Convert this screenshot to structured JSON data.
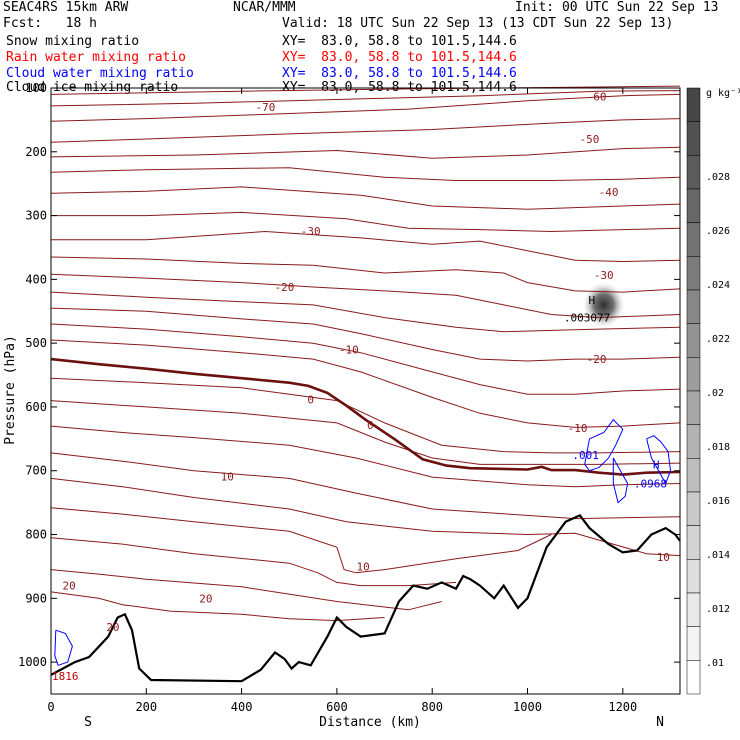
{
  "header": {
    "model": "SEAC4RS 15km ARW",
    "org": "NCAR/MMM",
    "init": "Init: 00 UTC Sun 22 Sep 13",
    "fcst": "Fcst:   18 h",
    "valid": "Valid: 18 UTC Sun 22 Sep 13 (13 CDT Sun 22 Sep 13)",
    "fields": [
      {
        "label": "Snow mixing ratio",
        "xy": "XY=  83.0, 58.8 to 101.5,144.6",
        "color": "#000000"
      },
      {
        "label": "Rain water mixing ratio",
        "xy": "XY=  83.0, 58.8 to 101.5,144.6",
        "color": "#ff0000"
      },
      {
        "label": "Cloud water mixing ratio",
        "xy": "XY=  83.0, 58.8 to 101.5,144.6",
        "color": "#0000ff"
      },
      {
        "label": "Cloud ice mixing ratio",
        "xy": "XY=  83.0, 58.8 to 101.5,144.6",
        "color": "#000000"
      }
    ]
  },
  "chart_data": {
    "type": "cross-section",
    "xlabel": "Distance (km)",
    "ylabel": "Pressure (hPa)",
    "xlim": [
      0,
      1320
    ],
    "ylim": [
      100,
      1050
    ],
    "xticks": [
      0,
      200,
      400,
      600,
      800,
      1000,
      1200
    ],
    "yticks": [
      100,
      200,
      300,
      400,
      500,
      600,
      700,
      800,
      900,
      1000
    ],
    "end_labels": {
      "left": "S",
      "right": "N"
    },
    "colorbar": {
      "units": "g kg⁻¹",
      "labels": [
        ".01",
        ".012",
        ".014",
        ".016",
        ".018",
        ".02",
        ".022",
        ".024",
        ".026",
        ".028"
      ]
    },
    "contour_labels": [
      {
        "text": "-70",
        "x": 450,
        "p": 130
      },
      {
        "text": "-60",
        "x": 1145,
        "p": 113
      },
      {
        "text": "-50",
        "x": 1130,
        "p": 180
      },
      {
        "text": "-40",
        "x": 1170,
        "p": 263
      },
      {
        "text": "-30",
        "x": 545,
        "p": 324
      },
      {
        "text": "-30",
        "x": 1160,
        "p": 393
      },
      {
        "text": "-20",
        "x": 490,
        "p": 412
      },
      {
        "text": "-20",
        "x": 1145,
        "p": 525
      },
      {
        "text": "-10",
        "x": 625,
        "p": 510
      },
      {
        "text": "-10",
        "x": 1105,
        "p": 633
      },
      {
        "text": "0",
        "x": 545,
        "p": 588
      },
      {
        "text": "0",
        "x": 670,
        "p": 628
      },
      {
        "text": "10",
        "x": 370,
        "p": 709
      },
      {
        "text": "10",
        "x": 655,
        "p": 850
      },
      {
        "text": "10",
        "x": 1285,
        "p": 835
      },
      {
        "text": "20",
        "x": 38,
        "p": 880
      },
      {
        "text": "20",
        "x": 325,
        "p": 900
      },
      {
        "text": "20",
        "x": 130,
        "p": 945
      },
      {
        "text": "1816",
        "x": 30,
        "p": 1022
      }
    ],
    "annotations": [
      {
        "text": "H",
        "x": 1135,
        "p": 432
      },
      {
        "text": ".003077",
        "x": 1125,
        "p": 460
      },
      {
        "text": ".001",
        "x": 1122,
        "p": 675
      },
      {
        "text": "H",
        "x": 1270,
        "p": 690
      },
      {
        "text": ".0968",
        "x": 1258,
        "p": 720
      }
    ],
    "terrain_km_hpa": [
      [
        0,
        1020
      ],
      [
        50,
        1000
      ],
      [
        80,
        992
      ],
      [
        120,
        960
      ],
      [
        140,
        930
      ],
      [
        155,
        925
      ],
      [
        170,
        950
      ],
      [
        185,
        1010
      ],
      [
        210,
        1028
      ],
      [
        400,
        1030
      ],
      [
        440,
        1012
      ],
      [
        470,
        985
      ],
      [
        490,
        995
      ],
      [
        505,
        1010
      ],
      [
        520,
        1000
      ],
      [
        545,
        1005
      ],
      [
        580,
        960
      ],
      [
        600,
        930
      ],
      [
        620,
        945
      ],
      [
        650,
        960
      ],
      [
        700,
        955
      ],
      [
        730,
        905
      ],
      [
        760,
        880
      ],
      [
        790,
        885
      ],
      [
        820,
        875
      ],
      [
        850,
        885
      ],
      [
        865,
        865
      ],
      [
        880,
        870
      ],
      [
        900,
        880
      ],
      [
        930,
        900
      ],
      [
        950,
        880
      ],
      [
        980,
        915
      ],
      [
        1000,
        900
      ],
      [
        1040,
        820
      ],
      [
        1080,
        780
      ],
      [
        1110,
        770
      ],
      [
        1130,
        790
      ],
      [
        1170,
        815
      ],
      [
        1200,
        828
      ],
      [
        1230,
        825
      ],
      [
        1260,
        800
      ],
      [
        1290,
        790
      ],
      [
        1310,
        800
      ],
      [
        1320,
        810
      ]
    ],
    "freezing_level_km_hpa": [
      [
        0,
        525
      ],
      [
        100,
        533
      ],
      [
        200,
        540
      ],
      [
        300,
        548
      ],
      [
        400,
        555
      ],
      [
        500,
        562
      ],
      [
        540,
        567
      ],
      [
        580,
        578
      ],
      [
        620,
        598
      ],
      [
        660,
        620
      ],
      [
        720,
        650
      ],
      [
        780,
        682
      ],
      [
        830,
        692
      ],
      [
        880,
        696
      ],
      [
        940,
        697
      ],
      [
        1000,
        698
      ],
      [
        1030,
        694
      ],
      [
        1050,
        699
      ],
      [
        1100,
        699
      ],
      [
        1150,
        703
      ],
      [
        1200,
        706
      ],
      [
        1250,
        703
      ],
      [
        1320,
        702
      ]
    ],
    "isotherm_lines_hpa": [
      [
        [
          0,
          110
        ],
        [
          400,
          105
        ],
        [
          800,
          101
        ],
        [
          1200,
          98
        ],
        [
          1320,
          97
        ]
      ],
      [
        [
          0,
          128
        ],
        [
          300,
          124
        ],
        [
          600,
          118
        ],
        [
          900,
          112
        ],
        [
          1150,
          105
        ],
        [
          1320,
          104
        ]
      ],
      [
        [
          0,
          152
        ],
        [
          200,
          148
        ],
        [
          500,
          140
        ],
        [
          750,
          133
        ],
        [
          1000,
          120
        ],
        [
          1200,
          112
        ],
        [
          1320,
          110
        ]
      ],
      [
        [
          0,
          185
        ],
        [
          200,
          180
        ],
        [
          500,
          172
        ],
        [
          800,
          165
        ],
        [
          1050,
          155
        ],
        [
          1200,
          150
        ],
        [
          1320,
          148
        ]
      ],
      [
        [
          0,
          208
        ],
        [
          300,
          205
        ],
        [
          600,
          198
        ],
        [
          800,
          210
        ],
        [
          1000,
          205
        ],
        [
          1200,
          195
        ],
        [
          1320,
          193
        ]
      ],
      [
        [
          0,
          232
        ],
        [
          200,
          228
        ],
        [
          500,
          225
        ],
        [
          700,
          240
        ],
        [
          850,
          245
        ],
        [
          1050,
          245
        ],
        [
          1200,
          243
        ],
        [
          1320,
          240
        ]
      ],
      [
        [
          0,
          265
        ],
        [
          200,
          262
        ],
        [
          400,
          255
        ],
        [
          650,
          268
        ],
        [
          800,
          285
        ],
        [
          1000,
          290
        ],
        [
          1200,
          285
        ],
        [
          1320,
          282
        ]
      ],
      [
        [
          0,
          300
        ],
        [
          200,
          300
        ],
        [
          400,
          295
        ],
        [
          620,
          305
        ],
        [
          750,
          320
        ],
        [
          900,
          322
        ],
        [
          1050,
          325
        ],
        [
          1200,
          322
        ],
        [
          1320,
          320
        ]
      ],
      [
        [
          0,
          338
        ],
        [
          200,
          338
        ],
        [
          450,
          325
        ],
        [
          650,
          335
        ],
        [
          800,
          345
        ],
        [
          900,
          340
        ],
        [
          1000,
          355
        ],
        [
          1100,
          370
        ],
        [
          1200,
          372
        ],
        [
          1320,
          370
        ]
      ],
      [
        [
          0,
          365
        ],
        [
          200,
          368
        ],
        [
          400,
          375
        ],
        [
          550,
          378
        ],
        [
          700,
          390
        ],
        [
          850,
          385
        ],
        [
          950,
          390
        ],
        [
          1000,
          405
        ],
        [
          1100,
          418
        ],
        [
          1200,
          420
        ],
        [
          1320,
          415
        ]
      ],
      [
        [
          0,
          392
        ],
        [
          200,
          398
        ],
        [
          400,
          405
        ],
        [
          550,
          412
        ],
        [
          700,
          418
        ],
        [
          850,
          425
        ],
        [
          950,
          440
        ],
        [
          1050,
          455
        ],
        [
          1150,
          460
        ],
        [
          1320,
          455
        ]
      ],
      [
        [
          0,
          420
        ],
        [
          200,
          428
        ],
        [
          400,
          435
        ],
        [
          550,
          440
        ],
        [
          700,
          460
        ],
        [
          850,
          475
        ],
        [
          950,
          482
        ],
        [
          1050,
          480
        ],
        [
          1150,
          478
        ],
        [
          1320,
          475
        ]
      ],
      [
        [
          0,
          445
        ],
        [
          200,
          450
        ],
        [
          400,
          462
        ],
        [
          550,
          470
        ],
        [
          650,
          485
        ],
        [
          800,
          510
        ],
        [
          900,
          525
        ],
        [
          1000,
          528
        ],
        [
          1100,
          525
        ],
        [
          1200,
          525
        ],
        [
          1320,
          522
        ]
      ],
      [
        [
          0,
          470
        ],
        [
          200,
          478
        ],
        [
          400,
          490
        ],
        [
          550,
          500
        ],
        [
          650,
          515
        ],
        [
          800,
          545
        ],
        [
          900,
          565
        ],
        [
          1000,
          580
        ],
        [
          1100,
          580
        ],
        [
          1200,
          575
        ],
        [
          1320,
          572
        ]
      ],
      [
        [
          0,
          495
        ],
        [
          200,
          503
        ],
        [
          400,
          515
        ],
        [
          550,
          525
        ],
        [
          650,
          545
        ],
        [
          800,
          585
        ],
        [
          900,
          610
        ],
        [
          1000,
          625
        ],
        [
          1100,
          632
        ],
        [
          1200,
          630
        ],
        [
          1320,
          625
        ]
      ],
      [
        [
          0,
          555
        ],
        [
          200,
          562
        ],
        [
          400,
          570
        ],
        [
          600,
          590
        ],
        [
          700,
          625
        ],
        [
          820,
          660
        ],
        [
          950,
          670
        ],
        [
          1050,
          672
        ],
        [
          1150,
          672
        ],
        [
          1320,
          670
        ]
      ],
      [
        [
          0,
          590
        ],
        [
          200,
          600
        ],
        [
          400,
          610
        ],
        [
          600,
          625
        ],
        [
          700,
          655
        ],
        [
          800,
          680
        ],
        [
          900,
          690
        ],
        [
          1000,
          690
        ],
        [
          1150,
          690
        ],
        [
          1320,
          688
        ]
      ],
      [
        [
          0,
          630
        ],
        [
          150,
          640
        ],
        [
          300,
          648
        ],
        [
          500,
          660
        ],
        [
          640,
          680
        ],
        [
          800,
          710
        ],
        [
          1000,
          722
        ],
        [
          1100,
          725
        ],
        [
          1200,
          722
        ],
        [
          1320,
          720
        ]
      ],
      [
        [
          0,
          672
        ],
        [
          150,
          685
        ],
        [
          300,
          700
        ],
        [
          500,
          712
        ],
        [
          640,
          735
        ],
        [
          800,
          760
        ],
        [
          1000,
          770
        ],
        [
          1100,
          775
        ],
        [
          1320,
          772
        ]
      ],
      [
        [
          0,
          712
        ],
        [
          150,
          725
        ],
        [
          300,
          742
        ],
        [
          500,
          760
        ],
        [
          620,
          780
        ],
        [
          800,
          795
        ],
        [
          1000,
          800
        ],
        [
          1100,
          798
        ],
        [
          1250,
          830
        ],
        [
          1320,
          833
        ]
      ],
      [
        [
          0,
          758
        ],
        [
          150,
          768
        ],
        [
          300,
          780
        ],
        [
          500,
          795
        ],
        [
          600,
          820
        ],
        [
          615,
          855
        ],
        [
          640,
          860
        ],
        [
          700,
          855
        ],
        [
          850,
          838
        ],
        [
          980,
          825
        ],
        [
          1050,
          800
        ]
      ],
      [
        [
          0,
          805
        ],
        [
          150,
          815
        ],
        [
          300,
          830
        ],
        [
          500,
          845
        ],
        [
          560,
          860
        ],
        [
          600,
          875
        ],
        [
          650,
          880
        ],
        [
          750,
          880
        ],
        [
          850,
          875
        ]
      ],
      [
        [
          0,
          855
        ],
        [
          100,
          862
        ],
        [
          200,
          870
        ],
        [
          400,
          882
        ],
        [
          600,
          905
        ],
        [
          750,
          918
        ],
        [
          820,
          905
        ]
      ],
      [
        [
          0,
          890
        ],
        [
          100,
          900
        ],
        [
          150,
          910
        ],
        [
          250,
          920
        ],
        [
          400,
          925
        ],
        [
          500,
          932
        ],
        [
          600,
          935
        ],
        [
          700,
          930
        ]
      ]
    ],
    "cloud_water_contours_km_hpa": [
      [
        [
          1120,
          690
        ],
        [
          1130,
          650
        ],
        [
          1160,
          640
        ],
        [
          1180,
          620
        ],
        [
          1200,
          635
        ],
        [
          1185,
          660
        ],
        [
          1170,
          680
        ],
        [
          1150,
          695
        ],
        [
          1130,
          700
        ],
        [
          1120,
          690
        ]
      ],
      [
        [
          1250,
          650
        ],
        [
          1260,
          680
        ],
        [
          1275,
          700
        ],
        [
          1290,
          720
        ],
        [
          1300,
          700
        ],
        [
          1295,
          670
        ],
        [
          1280,
          655
        ],
        [
          1265,
          645
        ],
        [
          1250,
          650
        ]
      ],
      [
        [
          1180,
          680
        ],
        [
          1195,
          700
        ],
        [
          1210,
          720
        ],
        [
          1205,
          740
        ],
        [
          1190,
          750
        ],
        [
          1180,
          720
        ],
        [
          1180,
          680
        ]
      ],
      [
        [
          10,
          950
        ],
        [
          30,
          955
        ],
        [
          45,
          975
        ],
        [
          35,
          1000
        ],
        [
          15,
          1005
        ],
        [
          8,
          990
        ],
        [
          10,
          950
        ]
      ]
    ],
    "ice_cloud": {
      "x": 1160,
      "p": 440,
      "rx": 22,
      "rp": 24
    }
  }
}
